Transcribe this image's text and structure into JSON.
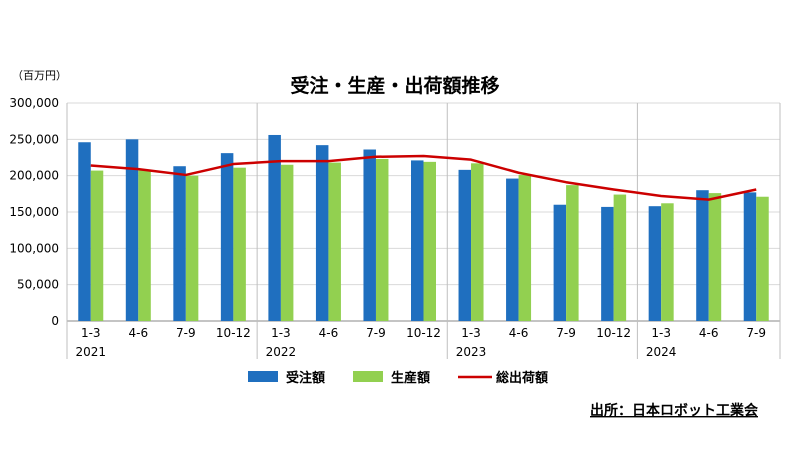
{
  "chart_data": {
    "type": "bar",
    "title": "受注・生産・出荷額推移",
    "unit_label": "（百万円）",
    "source_note": "出所：日本ロボット工業会",
    "categories": [
      "1-3",
      "4-6",
      "7-9",
      "10-12",
      "1-3",
      "4-6",
      "7-9",
      "10-12",
      "1-3",
      "4-6",
      "7-9",
      "10-12",
      "1-3",
      "4-6",
      "7-9"
    ],
    "year_labels": [
      {
        "label": "2021",
        "start_index": 0
      },
      {
        "label": "2022",
        "start_index": 4
      },
      {
        "label": "2023",
        "start_index": 8
      },
      {
        "label": "2024",
        "start_index": 12
      }
    ],
    "ylim": [
      0,
      300000
    ],
    "yticks": [
      0,
      50000,
      100000,
      150000,
      200000,
      250000,
      300000
    ],
    "ytick_labels": [
      "0",
      "50,000",
      "100,000",
      "150,000",
      "200,000",
      "250,000",
      "300,000"
    ],
    "grid": true,
    "legend_position": "bottom",
    "series": [
      {
        "name": "受注額",
        "type": "bar",
        "color": "#1f6fbf",
        "values": [
          246000,
          250000,
          213000,
          231000,
          256000,
          242000,
          236000,
          221000,
          208000,
          196000,
          160000,
          157000,
          158000,
          180000,
          177000
        ]
      },
      {
        "name": "生産額",
        "type": "bar",
        "color": "#92d050",
        "values": [
          207000,
          208000,
          200000,
          211000,
          215000,
          218000,
          223000,
          219000,
          217000,
          201000,
          187000,
          174000,
          162000,
          176000,
          171000
        ]
      },
      {
        "name": "総出荷額",
        "type": "line",
        "color": "#cc0000",
        "values": [
          214000,
          209000,
          201000,
          216000,
          220000,
          220000,
          226000,
          227000,
          222000,
          204000,
          191000,
          181000,
          172000,
          167000,
          181000
        ]
      }
    ]
  }
}
